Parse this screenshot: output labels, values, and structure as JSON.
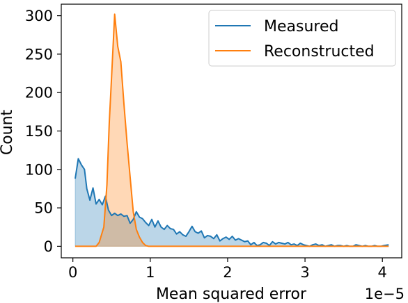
{
  "chart_data": {
    "type": "area",
    "xlabel": "Mean squared error",
    "ylabel": "Count",
    "x_offset_label": "1e−5",
    "xlim": [
      -0.15,
      4.25
    ],
    "ylim": [
      -15,
      315
    ],
    "xticks": [
      0,
      1,
      2,
      3,
      4
    ],
    "xtick_labels": [
      "0",
      "1",
      "2",
      "3",
      "4"
    ],
    "yticks": [
      0,
      50,
      100,
      150,
      200,
      250,
      300
    ],
    "ytick_labels": [
      "0",
      "50",
      "100",
      "150",
      "200",
      "250",
      "300"
    ],
    "legend_position": "top-right",
    "grid": false,
    "fill_alpha": 0.3,
    "series": [
      {
        "name": "Measured",
        "color": "#1f77b4",
        "x": [
          0.03,
          0.07,
          0.11,
          0.15,
          0.18,
          0.22,
          0.26,
          0.3,
          0.34,
          0.38,
          0.42,
          0.46,
          0.5,
          0.54,
          0.58,
          0.62,
          0.66,
          0.7,
          0.74,
          0.78,
          0.82,
          0.86,
          0.9,
          0.94,
          0.98,
          1.02,
          1.06,
          1.1,
          1.14,
          1.18,
          1.22,
          1.26,
          1.3,
          1.34,
          1.38,
          1.42,
          1.46,
          1.5,
          1.54,
          1.58,
          1.62,
          1.66,
          1.7,
          1.74,
          1.78,
          1.82,
          1.86,
          1.9,
          1.94,
          1.98,
          2.02,
          2.06,
          2.1,
          2.14,
          2.18,
          2.22,
          2.26,
          2.3,
          2.34,
          2.38,
          2.42,
          2.46,
          2.5,
          2.54,
          2.58,
          2.62,
          2.66,
          2.7,
          2.74,
          2.78,
          2.82,
          2.86,
          2.9,
          2.94,
          2.98,
          3.02,
          3.06,
          3.1,
          3.14,
          3.18,
          3.22,
          3.26,
          3.3,
          3.34,
          3.38,
          3.42,
          3.46,
          3.5,
          3.54,
          3.58,
          3.62,
          3.66,
          3.7,
          3.74,
          3.78,
          3.82,
          3.86,
          3.9,
          3.94,
          3.98,
          4.02,
          4.08
        ],
        "values": [
          88,
          114,
          106,
          100,
          75,
          60,
          76,
          55,
          61,
          54,
          65,
          47,
          40,
          43,
          40,
          42,
          39,
          40,
          30,
          35,
          45,
          38,
          36,
          31,
          27,
          35,
          25,
          33,
          25,
          22,
          27,
          23,
          22,
          16,
          19,
          15,
          13,
          19,
          26,
          19,
          17,
          20,
          11,
          14,
          13,
          10,
          15,
          7,
          10,
          12,
          9,
          13,
          8,
          10,
          8,
          6,
          7,
          2,
          5,
          1,
          2,
          5,
          4,
          1,
          6,
          3,
          5,
          4,
          3,
          5,
          2,
          3,
          1,
          4,
          2,
          1,
          0,
          2,
          3,
          1,
          2,
          0,
          1,
          2,
          0,
          1,
          1,
          0,
          1,
          0,
          0,
          2,
          1,
          0,
          1,
          0,
          0,
          1,
          0,
          0,
          1,
          2
        ]
      },
      {
        "name": "Reconstructed",
        "color": "#ff7f0e",
        "x": [
          0.03,
          0.3,
          0.34,
          0.4,
          0.44,
          0.47,
          0.5,
          0.54,
          0.58,
          0.62,
          0.66,
          0.7,
          0.74,
          0.78,
          0.82,
          0.86,
          0.9,
          0.94,
          0.98,
          1.02,
          1.06,
          1.1,
          1.2,
          1.5,
          2.0,
          2.5,
          3.0,
          3.5,
          4.08
        ],
        "values": [
          0,
          0,
          5,
          25,
          80,
          160,
          220,
          302,
          260,
          240,
          185,
          135,
          90,
          45,
          22,
          12,
          5,
          1,
          0,
          0,
          0,
          0,
          0,
          0,
          0,
          0,
          0,
          0,
          0
        ]
      }
    ]
  }
}
